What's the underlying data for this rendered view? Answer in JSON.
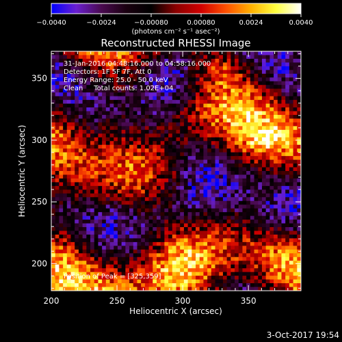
{
  "chart_data": {
    "type": "heatmap",
    "title": "Reconstructed RHESSI Image",
    "xlabel": "Heliocentric X (arcsec)",
    "ylabel": "Heliocentric Y (arcsec)",
    "xlim": [
      200,
      390
    ],
    "ylim": [
      178,
      372
    ],
    "xticks": [
      200,
      250,
      300,
      350
    ],
    "yticks": [
      200,
      250,
      300,
      350
    ],
    "colorbar": {
      "range": [
        -0.004,
        0.004
      ],
      "tick_values": [
        -0.004,
        -0.0024,
        -0.0008,
        0.0008,
        0.0024,
        0.004
      ],
      "tick_labels": [
        "−0.0040",
        "−0.0024",
        "−0.00080",
        "0.00080",
        "0.0024",
        "0.0040"
      ],
      "unit_label": "(photons cm⁻² s⁻¹ asec⁻²)"
    },
    "annotations": [
      "31-Jan-2016 04:48:16.000 to 04:58:16.000",
      "Detectors: 1F 5F 7F, Att 0",
      "Energy Range: 25.0 - 50.0 keV",
      "Clean     Total counts: 1.02E+04"
    ],
    "peak_label": "Position of Peak = [325,359]",
    "peak": [
      325,
      359
    ],
    "grid": false,
    "colormap": [
      "#0000ff",
      "#6a1fcf",
      "#4a0a50",
      "#1a0010",
      "#000000",
      "#8b0000",
      "#d00000",
      "#ff5000",
      "#ffb000",
      "#ffff40",
      "#ffffff"
    ]
  },
  "footer": {
    "timestamp": "3-Oct-2017 19:54"
  }
}
